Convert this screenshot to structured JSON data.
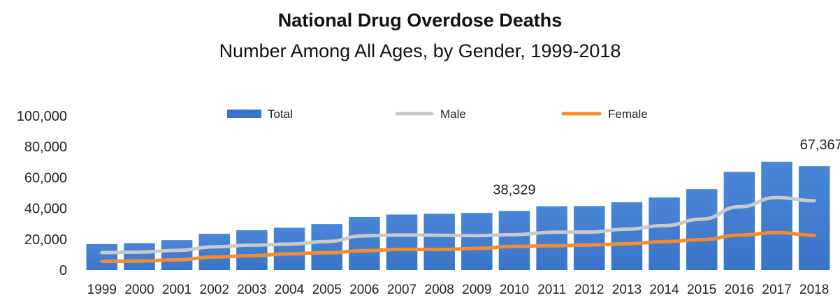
{
  "title": "National Drug Overdose Deaths",
  "subtitle": "Number Among All Ages, by Gender, 1999-2018",
  "colors": {
    "total": "#3a74c8",
    "male": "#c9c9c9",
    "female": "#f28c2f"
  },
  "chart_data": {
    "type": "bar",
    "title": "National Drug Overdose Deaths",
    "subtitle": "Number Among All Ages, by Gender, 1999-2018",
    "categories": [
      "1999",
      "2000",
      "2001",
      "2002",
      "2003",
      "2004",
      "2005",
      "2006",
      "2007",
      "2008",
      "2009",
      "2010",
      "2011",
      "2012",
      "2013",
      "2014",
      "2015",
      "2016",
      "2017",
      "2018"
    ],
    "ylim": [
      0,
      100000
    ],
    "yticks": [
      0,
      20000,
      40000,
      60000,
      80000,
      100000
    ],
    "ytick_labels": [
      "0",
      "20,000",
      "40,000",
      "60,000",
      "80,000",
      "100,000"
    ],
    "legend_position": "top",
    "grid": false,
    "series": [
      {
        "name": "Total",
        "kind": "bar",
        "values": [
          16849,
          17415,
          19394,
          23518,
          25785,
          27424,
          29813,
          34425,
          36010,
          36450,
          37004,
          38329,
          41340,
          41502,
          43982,
          47055,
          52404,
          63632,
          70237,
          67367
        ]
      },
      {
        "name": "Male",
        "kind": "line",
        "values": [
          11300,
          11600,
          12700,
          15000,
          16100,
          16800,
          18500,
          22200,
          22700,
          22500,
          22300,
          22900,
          24500,
          24600,
          26500,
          28800,
          33000,
          41000,
          47000,
          44900
        ]
      },
      {
        "name": "Female",
        "kind": "line",
        "values": [
          5600,
          5800,
          6600,
          8400,
          9300,
          10500,
          11200,
          12500,
          13400,
          13300,
          14000,
          15300,
          15700,
          16200,
          17000,
          18400,
          19700,
          22600,
          24300,
          22500
        ]
      }
    ],
    "annotations": [
      {
        "category": "2010",
        "text": "38,329"
      },
      {
        "category": "2018",
        "text": "67,367"
      }
    ]
  }
}
